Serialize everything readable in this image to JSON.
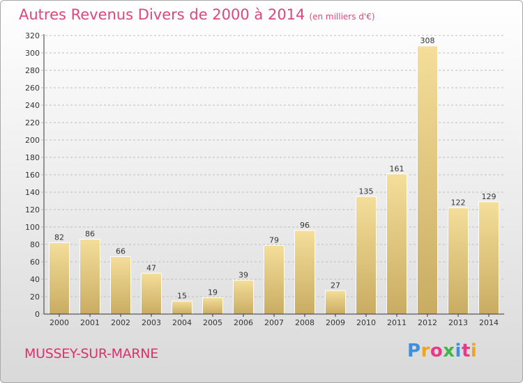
{
  "title": "Autres Revenus Divers de 2000 à 2014",
  "unit": "(en milliers d'€)",
  "location": "MUSSEY-SUR-MARNE",
  "logo": {
    "text": "Proxiti",
    "letter_colors": [
      "#3f8fdc",
      "#f0a41b",
      "#e83a87",
      "#40b64a",
      "#3f8fdc",
      "#e83a87",
      "#f0a41b"
    ]
  },
  "colors": {
    "title": "#e0457b",
    "location": "#d9326c",
    "bar_light": "#f4de9a",
    "bar_dark": "#c9ac62",
    "axis": "#333333",
    "grid": "#bdbdbd"
  },
  "chart_data": {
    "type": "bar",
    "categories": [
      "2000",
      "2001",
      "2002",
      "2003",
      "2004",
      "2005",
      "2006",
      "2007",
      "2008",
      "2009",
      "2010",
      "2011",
      "2012",
      "2013",
      "2014"
    ],
    "values": [
      82,
      86,
      66,
      47,
      15,
      19,
      39,
      79,
      96,
      27,
      135,
      161,
      308,
      122,
      129
    ],
    "ylim": [
      0,
      320
    ],
    "yticks": [
      0,
      20,
      40,
      60,
      80,
      100,
      120,
      140,
      160,
      180,
      200,
      220,
      240,
      260,
      280,
      300,
      320
    ],
    "grid": true,
    "data_labels": true
  }
}
